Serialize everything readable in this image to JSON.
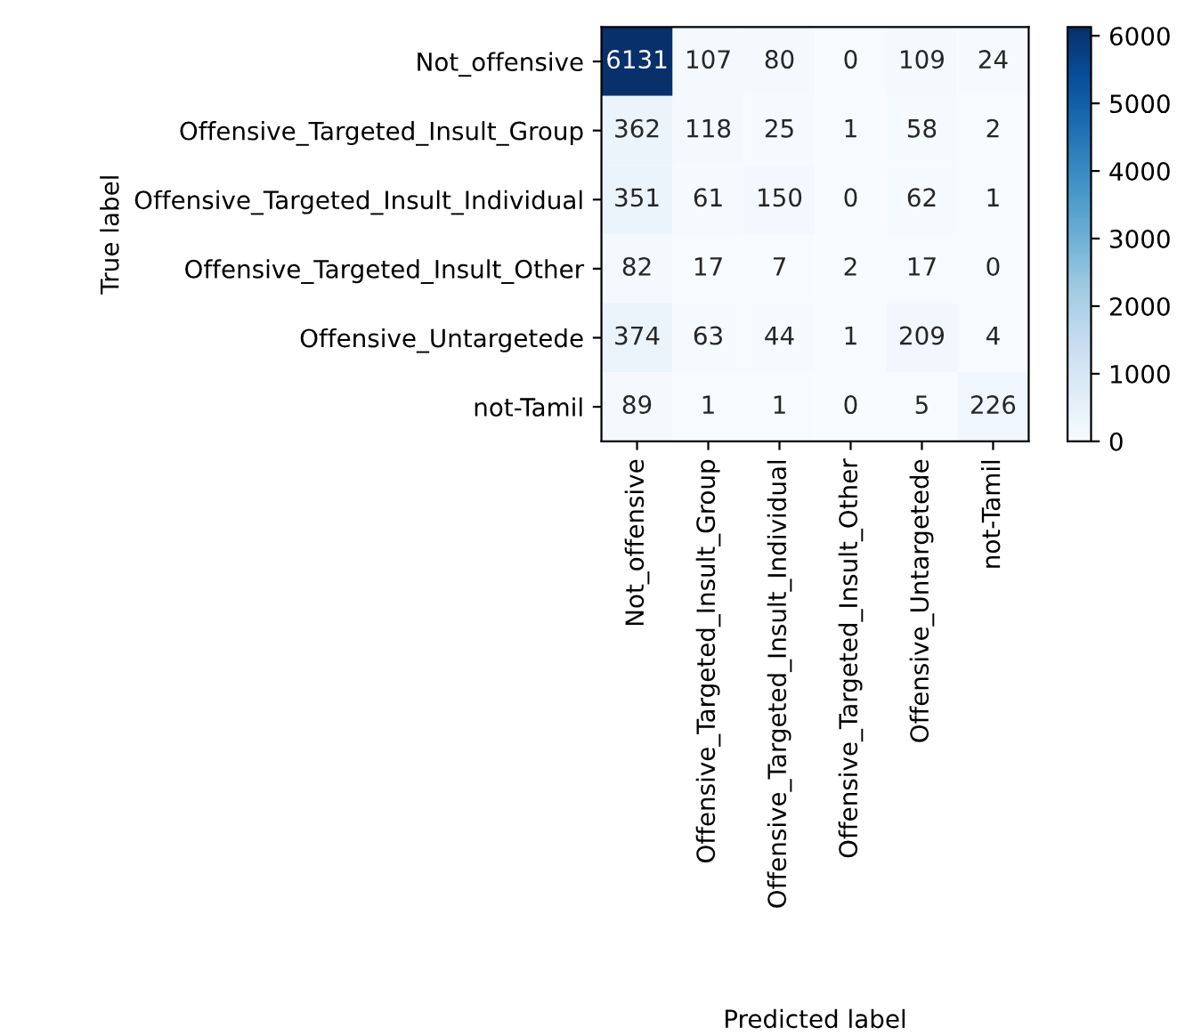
{
  "chart_data": {
    "type": "heatmap",
    "xlabel": "Predicted label",
    "ylabel": "True label",
    "categories": [
      "Not_offensive",
      "Offensive_Targeted_Insult_Group",
      "Offensive_Targeted_Insult_Individual",
      "Offensive_Targeted_Insult_Other",
      "Offensive_Untargetede",
      "not-Tamil"
    ],
    "y_categories": [
      "Not_offensive",
      "Offensive_Targeted_Insult_Group",
      "Offensive_Targeted_Insult_Individual",
      "Offensive_Targeted_Insult_Other",
      "Offensive_Untargetede",
      "not-Tamil"
    ],
    "cells": [
      [
        6131,
        107,
        80,
        0,
        109,
        24
      ],
      [
        362,
        118,
        25,
        1,
        58,
        2
      ],
      [
        351,
        61,
        150,
        0,
        62,
        1
      ],
      [
        82,
        17,
        7,
        2,
        17,
        0
      ],
      [
        374,
        63,
        44,
        1,
        209,
        4
      ],
      [
        89,
        1,
        1,
        0,
        5,
        226
      ]
    ],
    "data_labels": true,
    "clim": [
      0,
      6131
    ],
    "cticks": [
      0,
      1000,
      2000,
      3000,
      4000,
      5000,
      6000
    ]
  }
}
